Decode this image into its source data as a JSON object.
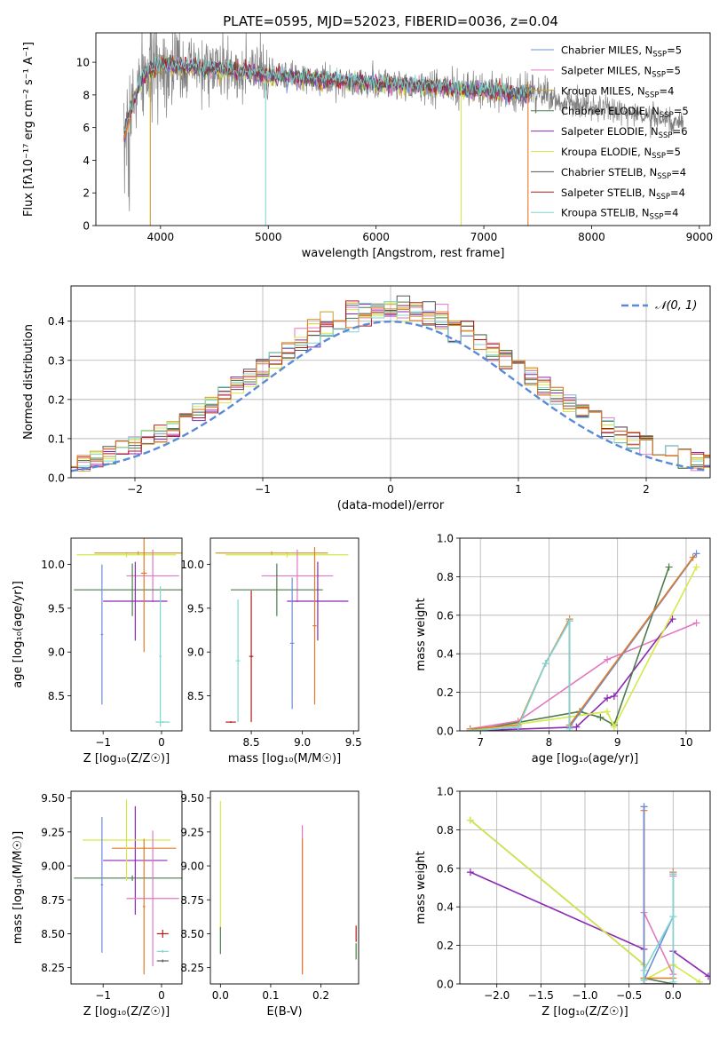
{
  "figure_title": "PLATE=0595, MJD=52023, FIBERID=0036, z=0.04",
  "colors": {
    "chabrier_miles": "#6b8fd6",
    "salpeter_miles": "#e377c2",
    "kroupa_miles": "#c8a02a",
    "chabrier_elodie": "#4a7d4a",
    "salpeter_elodie": "#8c28b4",
    "kroupa_elodie": "#d6e84a",
    "chabrier_stelib": "#555555",
    "salpeter_stelib": "#b01c1c",
    "kroupa_stelib": "#7fd6d0",
    "observed": "#808080",
    "orange": "#e07b28",
    "normal": "#5b8bd6"
  },
  "chart_data": [
    {
      "id": "spectrum",
      "type": "line",
      "xlabel": "wavelength [Angstrom, rest frame]",
      "ylabel": "Flux [fλ10⁻¹⁷ erg cm⁻² s⁻¹ A⁻¹]",
      "xlim": [
        3400,
        9100
      ],
      "ylim": [
        0,
        11.8
      ],
      "xticks": [
        4000,
        5000,
        6000,
        7000,
        8000,
        9000
      ],
      "yticks": [
        0,
        2,
        4,
        6,
        8,
        10
      ],
      "legend_position": "upper-right",
      "legend": [
        {
          "label": "Chabrier MILES, N",
          "sub": "SSP",
          "tail": "=5",
          "color": "#6b8fd6"
        },
        {
          "label": "Salpeter MILES, N",
          "sub": "SSP",
          "tail": "=5",
          "color": "#e377c2"
        },
        {
          "label": "Kroupa MILES, N",
          "sub": "SSP",
          "tail": "=4",
          "color": "#c8a02a"
        },
        {
          "label": "Chabrier ELODIE, N",
          "sub": "SSP",
          "tail": "=5",
          "color": "#4a7d4a"
        },
        {
          "label": "Salpeter ELODIE, N",
          "sub": "SSP",
          "tail": "=6",
          "color": "#8c28b4"
        },
        {
          "label": "Kroupa ELODIE, N",
          "sub": "SSP",
          "tail": "=5",
          "color": "#d6e84a"
        },
        {
          "label": "Chabrier STELIB, N",
          "sub": "SSP",
          "tail": "=4",
          "color": "#555555"
        },
        {
          "label": "Salpeter STELIB, N",
          "sub": "SSP",
          "tail": "=4",
          "color": "#b01c1c"
        },
        {
          "label": "Kroupa STELIB, N",
          "sub": "SSP",
          "tail": "=4",
          "color": "#7fd6d0"
        }
      ],
      "continuum": [
        [
          3650,
          5.4
        ],
        [
          3700,
          6.5
        ],
        [
          3800,
          8.6
        ],
        [
          3900,
          9.5
        ],
        [
          4000,
          9.9
        ],
        [
          4200,
          9.7
        ],
        [
          4500,
          9.6
        ],
        [
          5000,
          9.2
        ],
        [
          5500,
          8.9
        ],
        [
          6000,
          8.7
        ],
        [
          6500,
          8.5
        ],
        [
          7000,
          8.2
        ],
        [
          7400,
          8.1
        ]
      ],
      "observed_range": [
        3660,
        8850
      ],
      "model_dips": [
        {
          "x": 3905,
          "color": "#c8a02a"
        },
        {
          "x": 4975,
          "color": "#7fd6d0"
        },
        {
          "x": 6790,
          "color": "#d6e84a"
        },
        {
          "x": 7410,
          "color": "#e07b28"
        }
      ]
    },
    {
      "id": "residuals",
      "type": "histogram",
      "xlabel": "(data-model)/error",
      "ylabel": "Normed distribution",
      "xlim": [
        -2.5,
        2.5
      ],
      "ylim": [
        0,
        0.49
      ],
      "xticks": [
        -2,
        -1,
        0,
        1,
        2
      ],
      "xtick_labels": [
        "−2",
        "−1",
        "0",
        "1",
        "2"
      ],
      "yticks": [
        0,
        0.1,
        0.2,
        0.3,
        0.4
      ],
      "ytick_labels": [
        "0.0",
        "0.1",
        "0.2",
        "0.3",
        "0.4"
      ],
      "grid": true,
      "legend": "𝒩(0, 1)",
      "bin_width": 0.1
    },
    {
      "id": "age_vs_Z",
      "type": "errorbar",
      "xlabel": "Z [log₁₀(Z/Z☉)]",
      "ylabel": "age  [log₁₀(age/yr)]",
      "xlim": [
        -1.55,
        0.35
      ],
      "ylim": [
        8.1,
        10.3
      ],
      "xticks": [
        -1,
        0
      ],
      "xtick_labels": [
        "−1",
        "0"
      ],
      "yticks": [
        8.5,
        9.0,
        9.5,
        10.0
      ],
      "ytick_labels": [
        "8.5",
        "9.0",
        "9.5",
        "10.0"
      ],
      "points": [
        {
          "x": -0.6,
          "xerr": 0.85,
          "y": 10.11,
          "yerr": 0.03,
          "color": "#d6e84a"
        },
        {
          "x": -0.4,
          "xerr": 0.75,
          "y": 10.13,
          "yerr": 0.02,
          "color": "#c8a02a"
        },
        {
          "x": -0.15,
          "xerr": 0.45,
          "y": 9.87,
          "yerr": 0.3,
          "color": "#e377c2"
        },
        {
          "x": -0.5,
          "xerr": 1.0,
          "y": 9.71,
          "yerr": 0.3,
          "color": "#4a7d4a"
        },
        {
          "x": -0.45,
          "xerr": 0.55,
          "y": 9.58,
          "yerr": 0.45,
          "color": "#8c28b4"
        },
        {
          "x": -0.3,
          "xerr": 0.05,
          "y": 9.9,
          "yerr": 0.9,
          "color": "#e07b28"
        },
        {
          "x": -1.02,
          "xerr": 0.02,
          "y": 9.2,
          "yerr": 0.8,
          "color": "#6b8fd6"
        },
        {
          "x": 0.02,
          "xerr": 0.12,
          "y": 8.2,
          "yerr": 0.01,
          "color": "#7fd6d0"
        },
        {
          "x": -0.02,
          "xerr": 0.02,
          "y": 8.95,
          "yerr": 0.8,
          "color": "#7fd6d0"
        }
      ]
    },
    {
      "id": "age_vs_mass",
      "type": "errorbar",
      "xlabel": "mass [log₁₀(M/M☉)]",
      "ylabel": "",
      "xlim": [
        8.1,
        9.55
      ],
      "ylim": [
        8.1,
        10.3
      ],
      "xticks": [
        8.5,
        9.0,
        9.5
      ],
      "xtick_labels": [
        "8.5",
        "9.0",
        "9.5"
      ],
      "yticks": [
        8.5,
        9.0,
        9.5,
        10.0
      ],
      "ytick_labels": [
        "8.5",
        "9.0",
        "9.5",
        "10.0"
      ],
      "points": [
        {
          "x": 8.85,
          "xerr": 0.6,
          "y": 10.11,
          "yerr": 0.03,
          "color": "#d6e84a"
        },
        {
          "x": 8.7,
          "xerr": 0.55,
          "y": 10.13,
          "yerr": 0.02,
          "color": "#c8a02a"
        },
        {
          "x": 8.95,
          "xerr": 0.35,
          "y": 9.87,
          "yerr": 0.3,
          "color": "#e377c2"
        },
        {
          "x": 8.75,
          "xerr": 0.45,
          "y": 9.71,
          "yerr": 0.3,
          "color": "#4a7d4a"
        },
        {
          "x": 9.15,
          "xerr": 0.3,
          "y": 9.58,
          "yerr": 0.45,
          "color": "#8c28b4"
        },
        {
          "x": 9.12,
          "xerr": 0.02,
          "y": 9.3,
          "yerr": 0.9,
          "color": "#e07b28"
        },
        {
          "x": 8.9,
          "xerr": 0.02,
          "y": 9.1,
          "yerr": 0.75,
          "color": "#6b8fd6"
        },
        {
          "x": 8.3,
          "xerr": 0.05,
          "y": 8.2,
          "yerr": 0.01,
          "color": "#b01c1c"
        },
        {
          "x": 8.37,
          "xerr": 0.02,
          "y": 8.9,
          "yerr": 0.7,
          "color": "#7fd6d0"
        },
        {
          "x": 8.5,
          "xerr": 0.02,
          "y": 8.95,
          "yerr": 0.75,
          "color": "#b01c1c"
        }
      ]
    },
    {
      "id": "weight_vs_age",
      "type": "line",
      "xlabel": "age  [log₁₀(age/yr)]",
      "ylabel": "mass weight",
      "xlim": [
        6.7,
        10.35
      ],
      "ylim": [
        0,
        1.0
      ],
      "xticks": [
        7,
        8,
        9,
        10
      ],
      "xtick_labels": [
        "7",
        "8",
        "9",
        "10"
      ],
      "yticks": [
        0,
        0.2,
        0.4,
        0.6,
        0.8,
        1.0
      ],
      "ytick_labels": [
        "0.0",
        "0.2",
        "0.4",
        "0.6",
        "0.8",
        "1.0"
      ],
      "grid": true,
      "series": [
        {
          "color": "#e377c2",
          "x": [
            6.85,
            7.55,
            8.85,
            10.15
          ],
          "y": [
            0.01,
            0.05,
            0.37,
            0.56
          ]
        },
        {
          "color": "#8c28b4",
          "x": [
            6.85,
            8.4,
            8.85,
            8.95,
            9.8
          ],
          "y": [
            0.0,
            0.02,
            0.17,
            0.18,
            0.58
          ]
        },
        {
          "color": "#4a7d4a",
          "x": [
            6.85,
            8.45,
            8.75,
            8.95,
            9.75
          ],
          "y": [
            0.0,
            0.1,
            0.07,
            0.03,
            0.85
          ]
        },
        {
          "color": "#d6e84a",
          "x": [
            6.85,
            8.85,
            8.95,
            10.15
          ],
          "y": [
            0.0,
            0.1,
            0.02,
            0.85
          ]
        },
        {
          "color": "#6b8fd6",
          "x": [
            6.85,
            7.55,
            7.95,
            8.3,
            8.3,
            10.15
          ],
          "y": [
            0.0,
            0.02,
            0.35,
            0.57,
            0.02,
            0.92
          ]
        },
        {
          "color": "#e07b28",
          "x": [
            6.85,
            7.55,
            7.95,
            8.3,
            8.3,
            10.1
          ],
          "y": [
            0.01,
            0.03,
            0.35,
            0.58,
            0.03,
            0.9
          ]
        },
        {
          "color": "#7fd6d0",
          "x": [
            6.85,
            7.55,
            7.95,
            8.3,
            8.3
          ],
          "y": [
            0.0,
            0.02,
            0.35,
            0.57,
            0.01
          ]
        }
      ]
    },
    {
      "id": "mass_vs_Z",
      "type": "errorbar",
      "xlabel": "Z [log₁₀(Z/Z☉)]",
      "ylabel": "mass [log₁₀(M/M☉)]",
      "xlim": [
        -1.55,
        0.35
      ],
      "ylim": [
        8.13,
        9.55
      ],
      "xticks": [
        -1,
        0
      ],
      "xtick_labels": [
        "−1",
        "0"
      ],
      "yticks": [
        8.25,
        8.5,
        8.75,
        9.0,
        9.25,
        9.5
      ],
      "ytick_labels": [
        "8.25",
        "8.50",
        "8.75",
        "9.00",
        "9.25",
        "9.50"
      ],
      "points": [
        {
          "x": -0.5,
          "xerr": 1.0,
          "y": 8.91,
          "yerr": 0.02,
          "color": "#4a7d4a"
        },
        {
          "x": -0.45,
          "xerr": 0.55,
          "y": 9.04,
          "yerr": 0.4,
          "color": "#8c28b4"
        },
        {
          "x": -0.3,
          "xerr": 0.55,
          "y": 9.13,
          "yerr": 0.01,
          "color": "#e07b28"
        },
        {
          "x": -0.6,
          "xerr": 0.75,
          "y": 9.19,
          "yerr": 0.3,
          "color": "#d6e84a"
        },
        {
          "x": -0.15,
          "xerr": 0.45,
          "y": 8.76,
          "yerr": 0.5,
          "color": "#e377c2"
        },
        {
          "x": -1.02,
          "xerr": 0.02,
          "y": 8.86,
          "yerr": 0.5,
          "color": "#6b8fd6"
        },
        {
          "x": -0.3,
          "xerr": 0.02,
          "y": 8.7,
          "yerr": 0.5,
          "color": "#e07b28"
        },
        {
          "x": 0.02,
          "xerr": 0.1,
          "y": 8.5,
          "yerr": 0.03,
          "color": "#b01c1c"
        },
        {
          "x": 0.02,
          "xerr": 0.1,
          "y": 8.37,
          "yerr": 0.01,
          "color": "#7fd6d0"
        },
        {
          "x": 0.02,
          "xerr": 0.1,
          "y": 8.3,
          "yerr": 0.01,
          "color": "#555555"
        }
      ]
    },
    {
      "id": "mass_vs_ebv",
      "type": "errorbar",
      "xlabel": "E(B-V)",
      "ylabel": "",
      "xlim": [
        -0.02,
        0.275
      ],
      "ylim": [
        8.13,
        9.55
      ],
      "xticks": [
        0.0,
        0.1,
        0.2
      ],
      "xtick_labels": [
        "0.0",
        "0.1",
        "0.2"
      ],
      "yticks": [
        8.25,
        8.5,
        8.75,
        9.0,
        9.25,
        9.5
      ],
      "ytick_labels": [
        "8.25",
        "8.50",
        "8.75",
        "9.00",
        "9.25",
        "9.50"
      ],
      "points": [
        {
          "x": 0.0,
          "xerr": 0.0,
          "y": 9.0,
          "yerr": 0.48,
          "color": "#d6e84a"
        },
        {
          "x": 0.0,
          "xerr": 0.0,
          "y": 8.45,
          "yerr": 0.1,
          "color": "#4a7d4a"
        },
        {
          "x": 0.163,
          "xerr": 0.0,
          "y": 8.75,
          "yerr": 0.55,
          "color": "#e377c2"
        },
        {
          "x": 0.163,
          "xerr": 0.0,
          "y": 8.7,
          "yerr": 0.5,
          "color": "#e07b28"
        },
        {
          "x": 0.27,
          "xerr": 0.0,
          "y": 8.5,
          "yerr": 0.06,
          "color": "#b01c1c"
        },
        {
          "x": 0.27,
          "xerr": 0.0,
          "y": 8.37,
          "yerr": 0.06,
          "color": "#4a7d4a"
        }
      ]
    },
    {
      "id": "weight_vs_Z",
      "type": "line",
      "xlabel": "Z [log₁₀(Z/Z☉)]",
      "ylabel": "mass weight",
      "xlim": [
        -2.42,
        0.42
      ],
      "ylim": [
        0,
        1.0
      ],
      "xticks": [
        -2.0,
        -1.5,
        -1.0,
        -0.5,
        0.0
      ],
      "xtick_labels": [
        "−2.0",
        "−1.5",
        "−1.0",
        "−0.5",
        "0.0"
      ],
      "yticks": [
        0,
        0.2,
        0.4,
        0.6,
        0.8,
        1.0
      ],
      "ytick_labels": [
        "0.0",
        "0.2",
        "0.4",
        "0.6",
        "0.8",
        "1.0"
      ],
      "grid": true,
      "series": [
        {
          "color": "#8c28b4",
          "x": [
            -2.3,
            -0.33,
            -0.33,
            0.0,
            0.0,
            0.4
          ],
          "y": [
            0.58,
            0.18,
            0.0,
            0.0,
            0.17,
            0.04
          ]
        },
        {
          "color": "#4a7d4a",
          "x": [
            -2.3,
            -0.33,
            -0.33,
            0.0
          ],
          "y": [
            0.85,
            0.1,
            0.03,
            0.0
          ]
        },
        {
          "color": "#d6e84a",
          "x": [
            -2.3,
            -0.33,
            -0.33,
            0.0,
            0.3
          ],
          "y": [
            0.85,
            0.1,
            0.02,
            0.1,
            0.01
          ]
        },
        {
          "color": "#e377c2",
          "x": [
            -0.33,
            -0.33,
            0.0,
            0.0
          ],
          "y": [
            0.92,
            0.37,
            0.05,
            0.56
          ]
        },
        {
          "color": "#e07b28",
          "x": [
            -0.33,
            -0.33,
            0.0,
            0.0
          ],
          "y": [
            0.9,
            0.03,
            0.03,
            0.58
          ]
        },
        {
          "color": "#6b8fd6",
          "x": [
            -0.33,
            -0.33,
            0.0,
            0.0
          ],
          "y": [
            0.92,
            0.02,
            0.35,
            0.57
          ]
        },
        {
          "color": "#7fd6d0",
          "x": [
            -0.33,
            -0.33,
            0.0,
            0.0,
            0.0
          ],
          "y": [
            0.02,
            0.07,
            0.35,
            0.57,
            0.01
          ]
        }
      ]
    }
  ]
}
